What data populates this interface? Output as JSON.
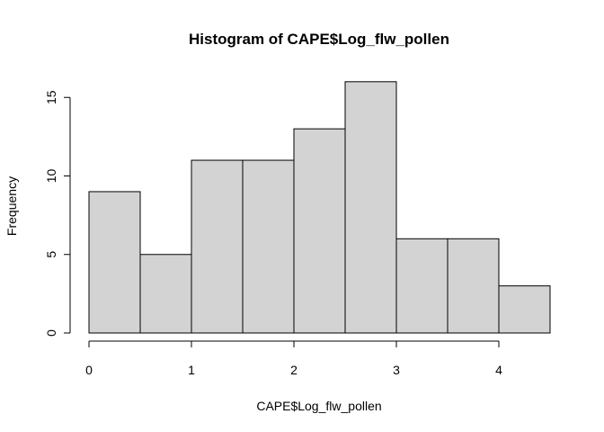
{
  "chart_data": {
    "type": "bar",
    "title": "Histogram of CAPE$Log_flw_pollen",
    "xlabel": "CAPE$Log_flw_pollen",
    "ylabel": "Frequency",
    "bins": [
      {
        "from": 0.0,
        "to": 0.5,
        "count": 9
      },
      {
        "from": 0.5,
        "to": 1.0,
        "count": 5
      },
      {
        "from": 1.0,
        "to": 1.5,
        "count": 11
      },
      {
        "from": 1.5,
        "to": 2.0,
        "count": 11
      },
      {
        "from": 2.0,
        "to": 2.5,
        "count": 13
      },
      {
        "from": 2.5,
        "to": 3.0,
        "count": 16
      },
      {
        "from": 3.0,
        "to": 3.5,
        "count": 6
      },
      {
        "from": 3.5,
        "to": 4.0,
        "count": 6
      },
      {
        "from": 4.0,
        "to": 4.5,
        "count": 3
      }
    ],
    "x_ticks": [
      "0",
      "1",
      "2",
      "3",
      "4"
    ],
    "y_ticks": [
      "0",
      "5",
      "10",
      "15"
    ],
    "xlim": [
      0,
      4
    ],
    "ylim": [
      0,
      16
    ],
    "bar_color": "#d3d3d3",
    "grid": false,
    "legend": "none"
  }
}
